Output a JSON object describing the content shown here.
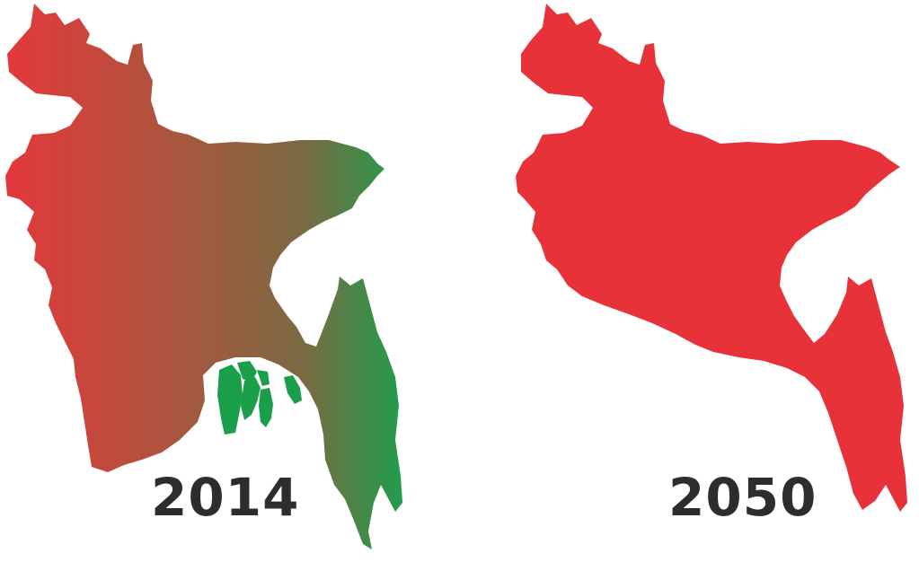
{
  "maps": [
    {
      "year": "2014",
      "state": "partially-green",
      "colors": {
        "west": "#e5373b",
        "east": "#1f9e4d",
        "patches": "#1a9e4a"
      }
    },
    {
      "year": "2050",
      "state": "fully-red",
      "colors": {
        "fill": "#e8323a"
      }
    }
  ]
}
